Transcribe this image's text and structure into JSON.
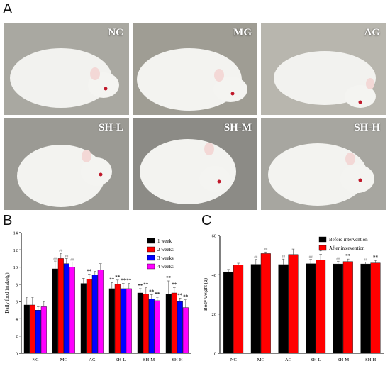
{
  "panels": {
    "a": "A",
    "b": "B",
    "c": "C"
  },
  "photos": [
    {
      "label": "NC",
      "bg": "#a9a8a1"
    },
    {
      "label": "MG",
      "bg": "#9f9d94"
    },
    {
      "label": "AG",
      "bg": "#b8b6ae"
    },
    {
      "label": "SH-L",
      "bg": "#9b9a94"
    },
    {
      "label": "SH-M",
      "bg": "#8c8b86"
    },
    {
      "label": "SH-H",
      "bg": "#a7a6a0"
    }
  ],
  "chart_data": [
    {
      "type": "bar",
      "ylabel": "Daily food intake(g)",
      "ylim": [
        0,
        14
      ],
      "yticks": [
        0,
        2,
        4,
        6,
        8,
        10,
        12,
        14
      ],
      "categories": [
        "NC",
        "MG",
        "AG",
        "SH-L",
        "SH-M",
        "SH-H"
      ],
      "legend_position": "top-right",
      "series": [
        {
          "name": "1 week",
          "color": "#000000",
          "values": [
            5.6,
            9.8,
            8.1,
            7.5,
            7.0,
            6.9
          ],
          "errors": [
            0.9,
            0.9,
            0.6,
            0.7,
            0.5,
            1.5
          ],
          "annotations": [
            "",
            "##",
            "",
            "**",
            "**",
            "**"
          ]
        },
        {
          "name": "2 weeks",
          "color": "#ff0000",
          "values": [
            5.6,
            11.0,
            8.6,
            8.0,
            6.9,
            7.0
          ],
          "errors": [
            0.9,
            0.6,
            0.6,
            0.5,
            0.7,
            0.6
          ],
          "annotations": [
            "",
            "##",
            "**",
            "**",
            "**",
            "**"
          ]
        },
        {
          "name": "3 weeks",
          "color": "#0000ff",
          "values": [
            5.0,
            10.4,
            9.1,
            7.5,
            6.3,
            6.0
          ],
          "errors": [
            0.4,
            0.6,
            0.4,
            0.6,
            0.5,
            0.4
          ],
          "annotations": [
            "",
            "##",
            "",
            "**",
            "**",
            "**"
          ]
        },
        {
          "name": "4 weeks",
          "color": "#ff00ff",
          "values": [
            5.4,
            10.0,
            9.7,
            7.5,
            6.1,
            5.3
          ],
          "errors": [
            0.6,
            0.6,
            0.7,
            0.6,
            0.4,
            0.9
          ],
          "annotations": [
            "",
            "##",
            "",
            "**",
            "**",
            "**"
          ]
        }
      ]
    },
    {
      "type": "bar",
      "ylabel": "Body weight (g)",
      "ylim": [
        0,
        60
      ],
      "yticks": [
        0,
        20,
        40,
        60
      ],
      "categories": [
        "NC",
        "MG",
        "AG",
        "SH-L",
        "SH-M",
        "SH-H"
      ],
      "legend_position": "top-right",
      "series": [
        {
          "name": "Before intervention",
          "color": "#000000",
          "values": [
            41.5,
            45.3,
            45.2,
            45.6,
            45.5,
            45.5
          ],
          "errors": [
            1.2,
            2.5,
            2.8,
            2.2,
            1.4,
            1.0
          ],
          "annotations": [
            "",
            "##",
            "##",
            "##",
            "##",
            "##"
          ]
        },
        {
          "name": "After intervention",
          "color": "#ff0000",
          "values": [
            44.9,
            50.8,
            50.3,
            47.6,
            46.7,
            46.0
          ],
          "errors": [
            1.0,
            0.8,
            2.8,
            2.8,
            1.3,
            1.3
          ],
          "annotations": [
            "",
            "##",
            "",
            "*",
            "**",
            "**"
          ]
        }
      ]
    }
  ]
}
